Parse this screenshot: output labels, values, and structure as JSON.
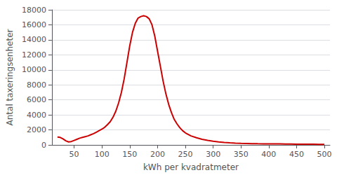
{
  "chart_data": {
    "type": "line",
    "xlabel": "kWh per kvadratmeter",
    "ylabel": "Antal taxeringsenheter",
    "color": "#cc0000",
    "xlim": [
      10,
      510
    ],
    "ylim": [
      0,
      18000
    ],
    "xticks": [
      50,
      100,
      150,
      200,
      250,
      300,
      350,
      400,
      450,
      500
    ],
    "yticks": [
      0,
      2000,
      4000,
      6000,
      8000,
      10000,
      12000,
      14000,
      16000,
      18000
    ],
    "grid": "y",
    "x": [
      20,
      25,
      30,
      35,
      40,
      45,
      50,
      55,
      60,
      65,
      70,
      75,
      80,
      85,
      90,
      95,
      100,
      105,
      110,
      115,
      120,
      125,
      130,
      135,
      140,
      145,
      150,
      155,
      160,
      165,
      170,
      175,
      180,
      185,
      190,
      195,
      200,
      205,
      210,
      215,
      220,
      225,
      230,
      235,
      240,
      245,
      250,
      260,
      270,
      280,
      290,
      300,
      310,
      320,
      330,
      340,
      350,
      360,
      370,
      380,
      390,
      400,
      410,
      420,
      430,
      440,
      450,
      460,
      470,
      480,
      490,
      500
    ],
    "values": [
      1050,
      1000,
      800,
      550,
      400,
      450,
      600,
      750,
      900,
      1000,
      1100,
      1200,
      1350,
      1500,
      1700,
      1900,
      2100,
      2350,
      2700,
      3100,
      3700,
      4500,
      5600,
      7000,
      8800,
      11000,
      13200,
      15000,
      16200,
      16900,
      17100,
      17200,
      17100,
      16800,
      16000,
      14500,
      12500,
      10500,
      8500,
      6800,
      5400,
      4300,
      3400,
      2800,
      2300,
      1900,
      1600,
      1200,
      950,
      750,
      600,
      480,
      390,
      330,
      280,
      240,
      210,
      190,
      170,
      155,
      145,
      140,
      135,
      130,
      120,
      110,
      100,
      95,
      90,
      85,
      80,
      75
    ]
  }
}
